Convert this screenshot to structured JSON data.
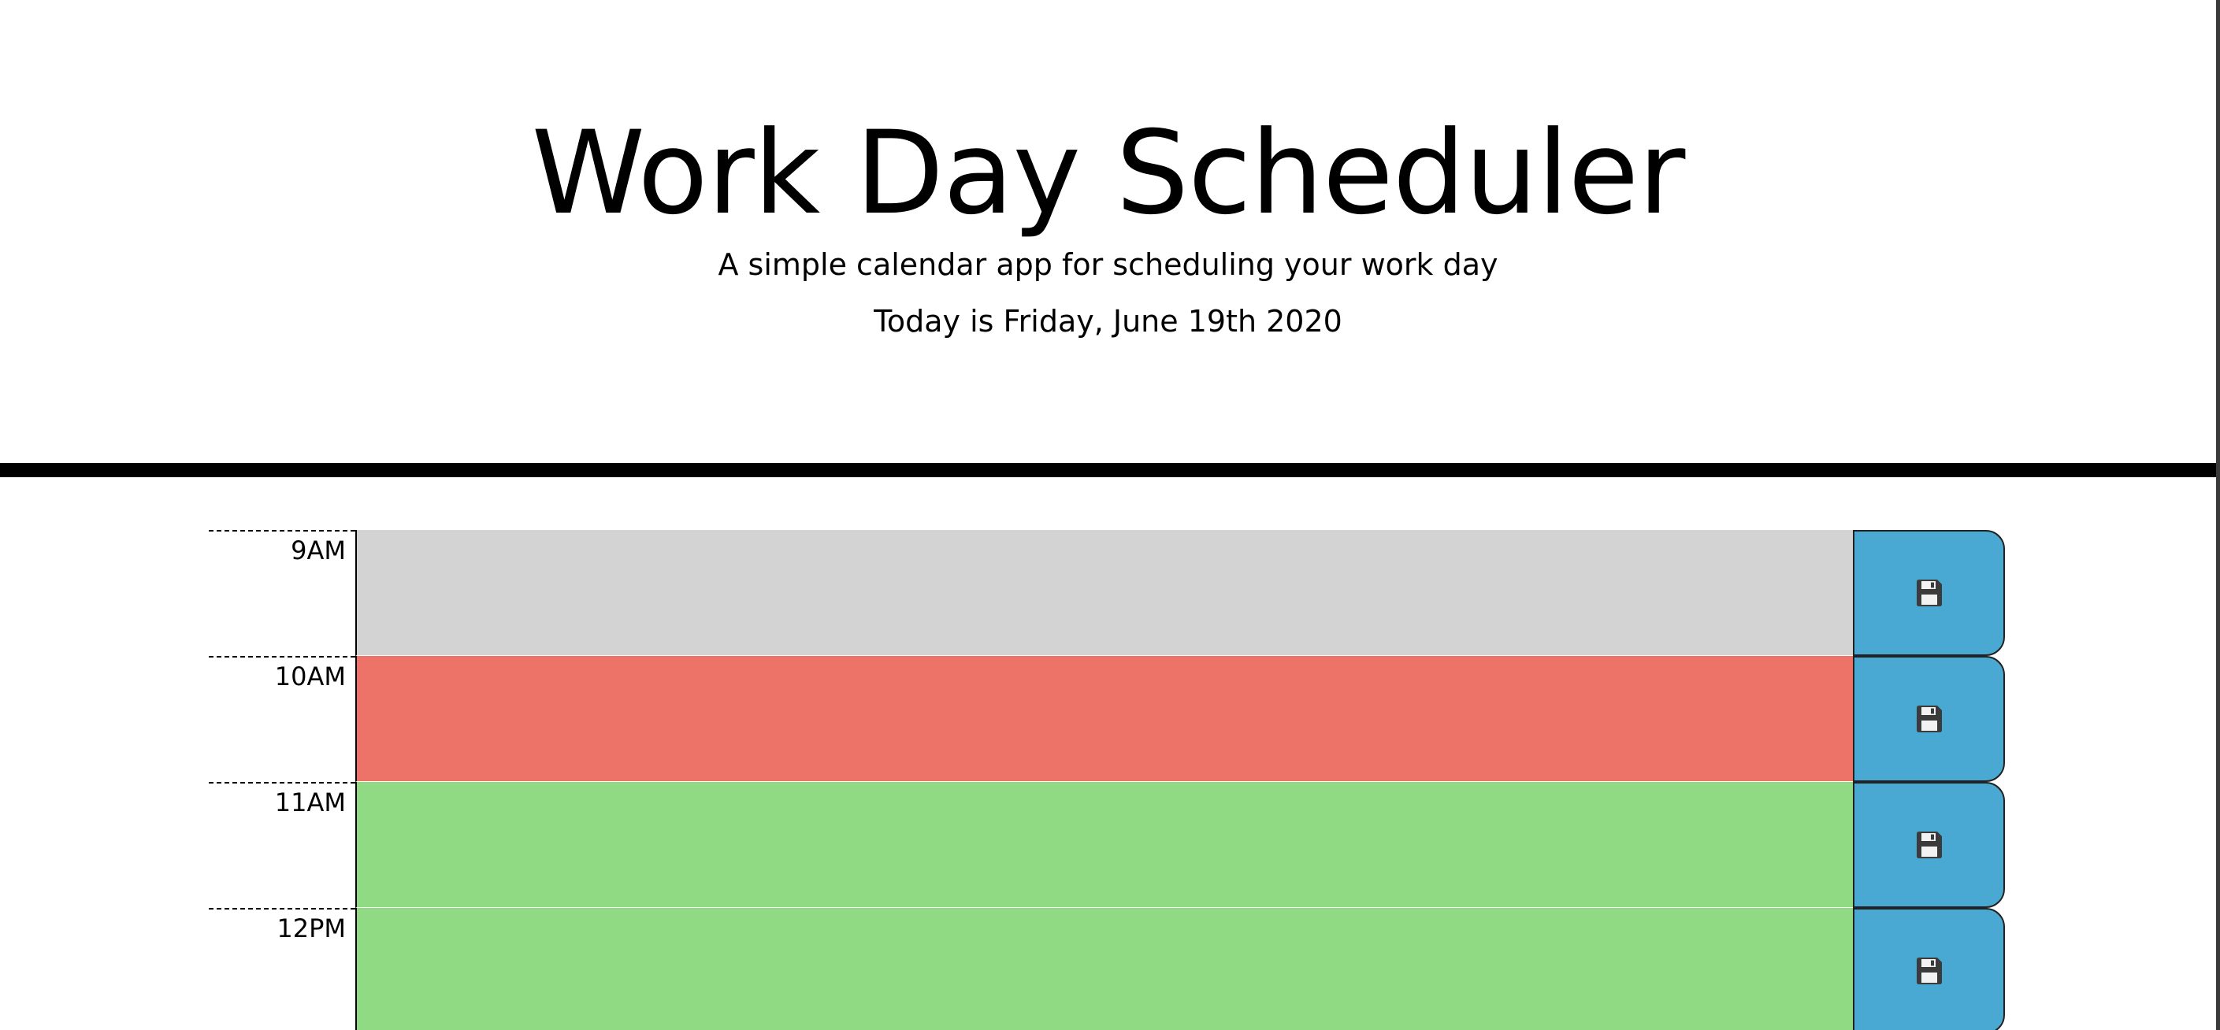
{
  "header": {
    "title": "Work Day Scheduler",
    "subtitle": "A simple calendar app for scheduling your work day",
    "current_day": "Today is Friday, June 19th 2020"
  },
  "colors": {
    "past": "#d3d3d3",
    "present": "#ed7369",
    "future": "#90da84",
    "save_button": "#4aa9d3",
    "divider": "#000000"
  },
  "time_blocks": [
    {
      "hour": "9AM",
      "status": "past",
      "value": "",
      "save_icon": "floppy-disk-icon"
    },
    {
      "hour": "10AM",
      "status": "present",
      "value": "",
      "save_icon": "floppy-disk-icon"
    },
    {
      "hour": "11AM",
      "status": "future",
      "value": "",
      "save_icon": "floppy-disk-icon"
    },
    {
      "hour": "12PM",
      "status": "future",
      "value": "",
      "save_icon": "floppy-disk-icon"
    }
  ]
}
